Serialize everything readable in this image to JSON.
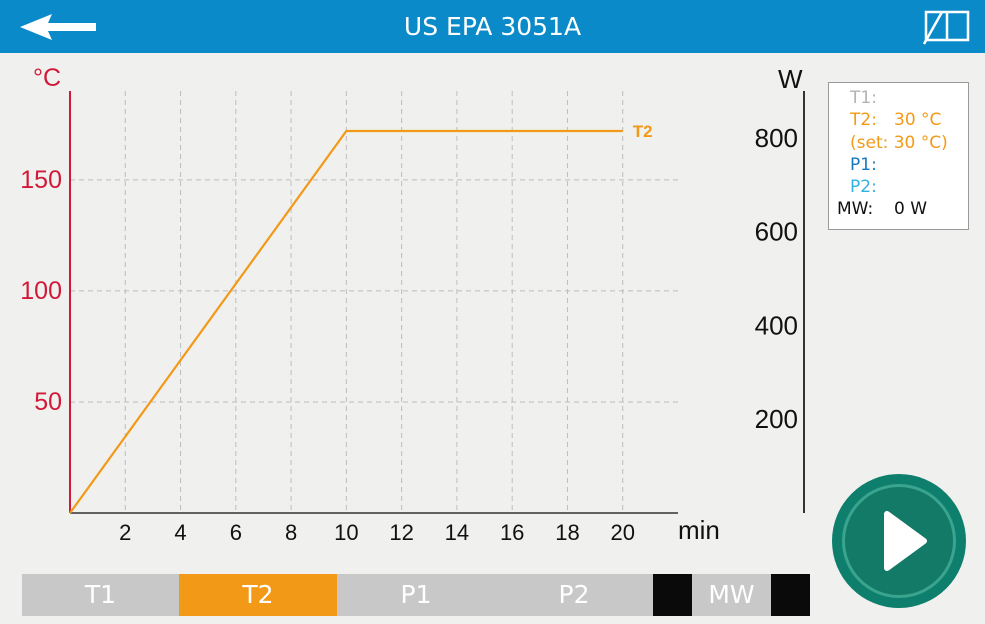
{
  "header": {
    "title": "US EPA 3051A",
    "back_icon": "arrow-left-icon",
    "manual_icon": "book-icon",
    "color": "#0a8ac8"
  },
  "legend": {
    "t1_label": "T1:",
    "t1_value": "",
    "t2_label": "T2:",
    "t2_value": "30 °C",
    "t2_set": "(set: 30 °C)",
    "p1_label": "P1:",
    "p1_value": "",
    "p2_label": "P2:",
    "p2_value": "",
    "mw_label": "MW:",
    "mw_value": "0 W",
    "colors": {
      "T1": "#b3b3b3",
      "T2": "#f29a17",
      "P1": "#1378c0",
      "P2": "#2fb3e4",
      "MW": "#111111"
    }
  },
  "play_button": {
    "icon": "play-icon",
    "color": "#0e7f6c"
  },
  "tabs": [
    {
      "label": "T1",
      "active": false
    },
    {
      "label": "T2",
      "active": true
    },
    {
      "label": "P1",
      "active": false
    },
    {
      "label": "P2",
      "active": false
    },
    {
      "label": "",
      "active": false
    },
    {
      "label": "MW",
      "active": false
    },
    {
      "label": "",
      "active": false
    }
  ],
  "chart_data": {
    "type": "line",
    "x_unit": "min",
    "y_left_unit": "°C",
    "y_right_unit": "W",
    "xlim": [
      0,
      22
    ],
    "ylim_left": [
      0,
      190
    ],
    "ylim_right": [
      0,
      900
    ],
    "x_ticks": [
      2,
      4,
      6,
      8,
      10,
      12,
      14,
      16,
      18,
      20
    ],
    "y_left_ticks": [
      50,
      100,
      150
    ],
    "y_right_ticks": [
      200,
      400,
      600,
      800
    ],
    "grid": true,
    "series": [
      {
        "name": "T2",
        "color": "#f29a17",
        "x": [
          0,
          10,
          20
        ],
        "y": [
          0,
          172,
          172
        ]
      }
    ]
  }
}
